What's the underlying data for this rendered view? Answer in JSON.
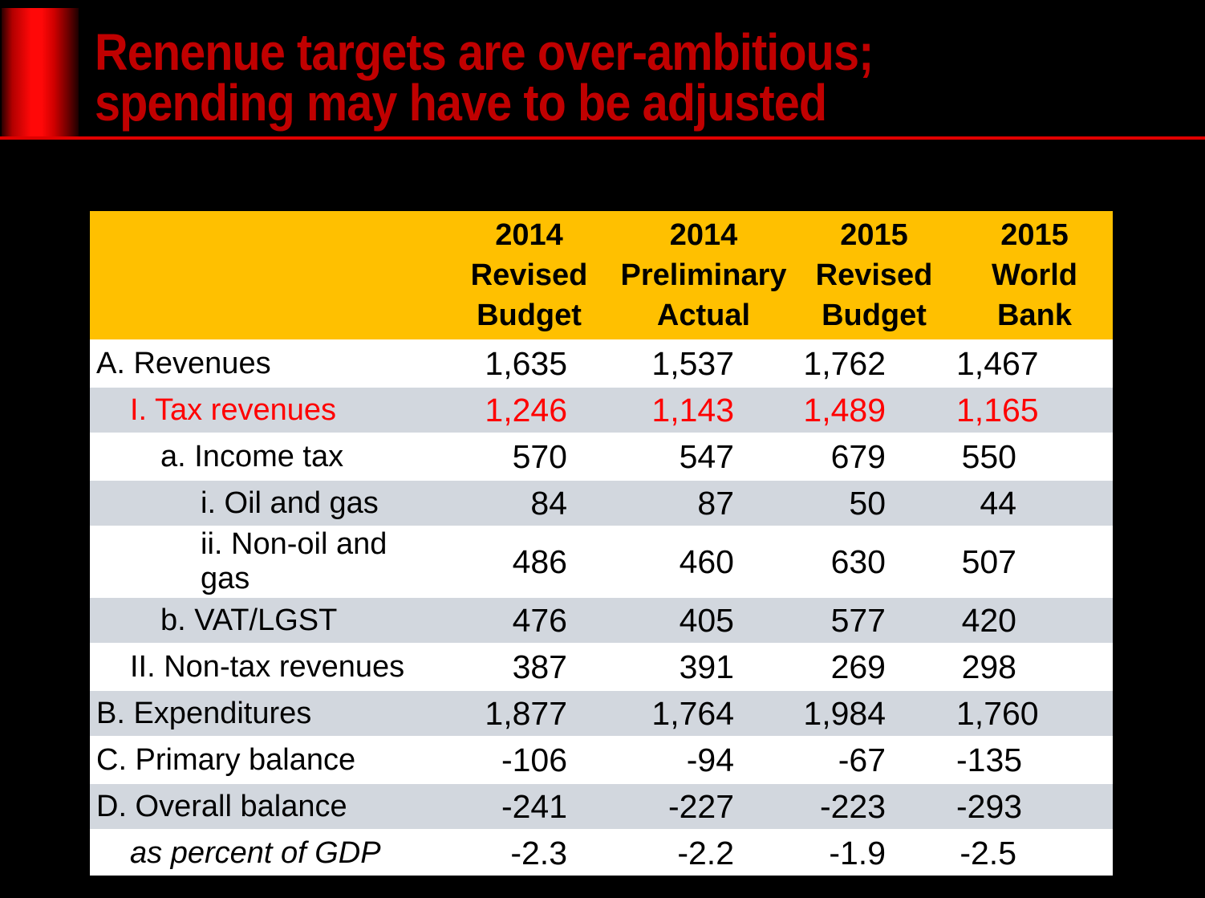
{
  "slide": {
    "title": "Renenue targets are over-ambitious;\nspending may have to be adjusted"
  },
  "table": {
    "columns": [
      "2014\nRevised\nBudget",
      "2014\nPreliminary\nActual",
      "2015\nRevised\nBudget",
      "2015\nWorld\nBank"
    ],
    "rows": [
      {
        "label": "A. Revenues",
        "indent": 0,
        "values": [
          "1,635",
          "1,537",
          "1,762",
          "1,467"
        ]
      },
      {
        "label": "I. Tax revenues",
        "indent": 1,
        "highlight": true,
        "values": [
          "1,246",
          "1,143",
          "1,489",
          "1,165"
        ]
      },
      {
        "label": "a. Income tax",
        "indent": 2,
        "values": [
          "570",
          "547",
          "679",
          "550"
        ]
      },
      {
        "label": "i. Oil and gas",
        "indent": 3,
        "values": [
          "84",
          "87",
          "50",
          "44"
        ]
      },
      {
        "label": "ii. Non-oil and gas",
        "indent": 3,
        "values": [
          "486",
          "460",
          "630",
          "507"
        ]
      },
      {
        "label": "b. VAT/LGST",
        "indent": 2,
        "values": [
          "476",
          "405",
          "577",
          "420"
        ]
      },
      {
        "label": "II. Non-tax revenues",
        "indent": 1,
        "values": [
          "387",
          "391",
          "269",
          "298"
        ]
      },
      {
        "label": "B. Expenditures",
        "indent": 0,
        "values": [
          "1,877",
          "1,764",
          "1,984",
          "1,760"
        ]
      },
      {
        "label": "C. Primary balance",
        "indent": 0,
        "values": [
          "-106",
          "-94",
          "-67",
          "-135"
        ]
      },
      {
        "label": "D. Overall balance",
        "indent": 0,
        "values": [
          "-241",
          "-227",
          "-223",
          "-293"
        ]
      },
      {
        "label": "as percent of GDP",
        "indent": 1,
        "italic": true,
        "values": [
          "-2.3",
          "-2.2",
          "-1.9",
          "-2.5"
        ]
      }
    ]
  },
  "colors": {
    "title_red": "#c00000",
    "accent_line_red": "#e00000",
    "header_bg_gold": "#ffc000",
    "band_gray": "#d2d7de",
    "highlight_red": "#ff0000",
    "background": "#000000"
  }
}
